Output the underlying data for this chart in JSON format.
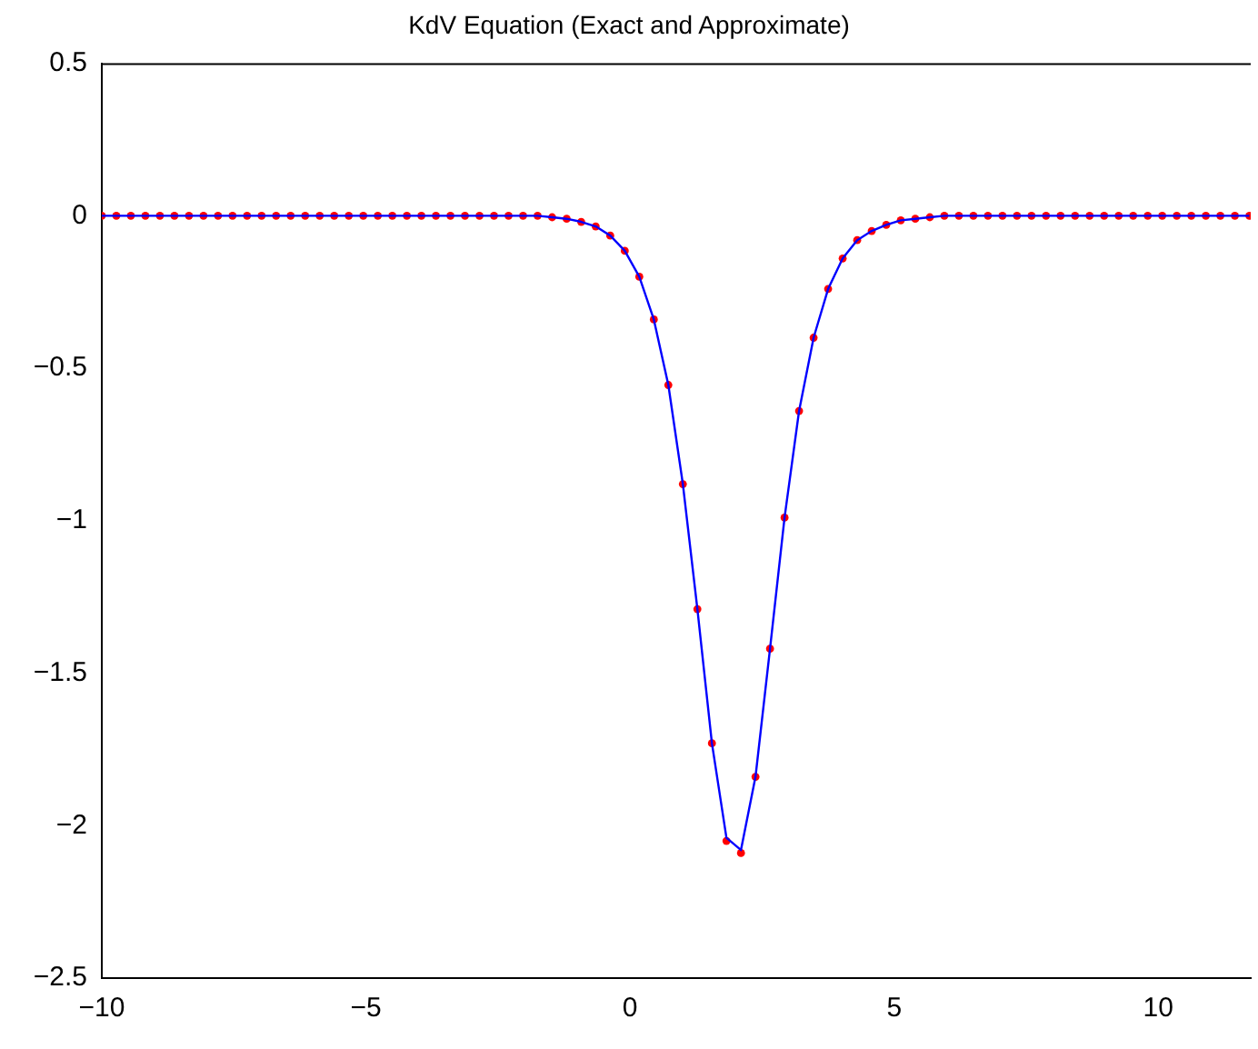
{
  "chart_data": {
    "type": "line",
    "title": "KdV Equation (Exact and Approximate)",
    "x": [
      -10,
      -9.725,
      -9.45,
      -9.175,
      -8.9,
      -8.625,
      -8.35,
      -8.075,
      -7.8,
      -7.525,
      -7.25,
      -6.975,
      -6.7,
      -6.425,
      -6.15,
      -5.875,
      -5.6,
      -5.325,
      -5.05,
      -4.775,
      -4.5,
      -4.225,
      -3.95,
      -3.675,
      -3.4,
      -3.125,
      -2.85,
      -2.575,
      -2.3,
      -2.025,
      -1.75,
      -1.475,
      -1.2,
      -0.925,
      -0.65,
      -0.375,
      -0.1,
      0.175,
      0.45,
      0.725,
      1,
      1.275,
      1.55,
      1.825,
      2.1,
      2.375,
      2.65,
      2.925,
      3.2,
      3.475,
      3.75,
      4.025,
      4.3,
      4.575,
      4.85,
      5.125,
      5.4,
      5.675,
      5.95,
      6.225,
      6.5,
      6.775,
      7.05,
      7.325,
      7.6,
      7.875,
      8.15,
      8.425,
      8.7,
      8.975,
      9.25,
      9.525,
      9.8,
      10.075,
      10.35,
      10.625,
      10.9,
      11.175,
      11.45,
      11.725
    ],
    "series": [
      {
        "type": "line",
        "marker": "none",
        "color": "#0000ff",
        "values": [
          0,
          0,
          0,
          0,
          0,
          0,
          0,
          0,
          0,
          0,
          0,
          0,
          0,
          0,
          0,
          0,
          0,
          0,
          0,
          0,
          0,
          0,
          0,
          0,
          0,
          0,
          0,
          0,
          0,
          0,
          0,
          -0.005,
          -0.01,
          -0.02,
          -0.035,
          -0.065,
          -0.115,
          -0.2,
          -0.34,
          -0.555,
          -0.88,
          -1.29,
          -1.73,
          -2.04,
          -2.08,
          -1.84,
          -1.42,
          -0.99,
          -0.64,
          -0.4,
          -0.24,
          -0.14,
          -0.08,
          -0.05,
          -0.03,
          -0.015,
          -0.01,
          -0.005,
          0,
          0,
          0,
          0,
          0,
          0,
          0,
          0,
          0,
          0,
          0,
          0,
          0,
          0,
          0,
          0,
          0,
          0,
          0,
          0,
          0,
          0
        ]
      },
      {
        "type": "scatter",
        "marker": "circle",
        "color": "#ff0000",
        "values": [
          0,
          0,
          0,
          0,
          0,
          0,
          0,
          0,
          0,
          0,
          0,
          0,
          0,
          0,
          0,
          0,
          0,
          0,
          0,
          0,
          0,
          0,
          0,
          0,
          0,
          0,
          0,
          0,
          0,
          0,
          0,
          -0.005,
          -0.01,
          -0.02,
          -0.035,
          -0.065,
          -0.115,
          -0.2,
          -0.34,
          -0.555,
          -0.88,
          -1.29,
          -1.73,
          -2.05,
          -2.09,
          -1.84,
          -1.42,
          -0.99,
          -0.64,
          -0.4,
          -0.24,
          -0.14,
          -0.08,
          -0.05,
          -0.03,
          -0.015,
          -0.01,
          -0.005,
          0,
          0,
          0,
          0,
          0,
          0,
          0,
          0,
          0,
          0,
          0,
          0,
          0,
          0,
          0,
          0,
          0,
          0,
          0,
          0,
          0,
          0
        ]
      }
    ],
    "xlim": [
      -10,
      11.75
    ],
    "xticks": [
      -10,
      -5,
      0,
      5,
      10
    ],
    "ylim": [
      -2.5,
      0.5
    ],
    "yticks": [
      -2.5,
      -2,
      -1.5,
      -1,
      -0.5,
      0,
      0.5
    ],
    "grid": false,
    "legend": false
  }
}
